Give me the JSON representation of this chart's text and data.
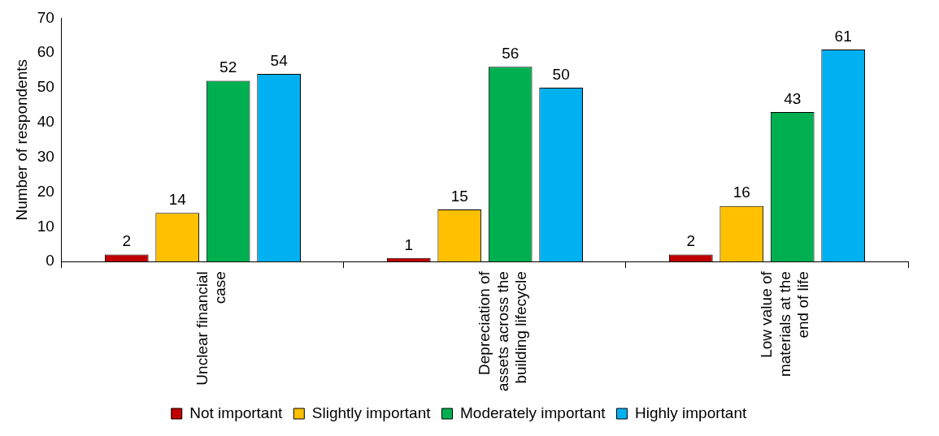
{
  "chart_data": {
    "type": "bar",
    "ylabel": "Number of respondents",
    "categories": [
      "Unclear financial case",
      "Depreciation of assets across the building lifecycle",
      "Low value of materials at the end of life"
    ],
    "series": [
      {
        "name": "Not important",
        "color": "#c00000",
        "values": [
          2,
          1,
          2
        ]
      },
      {
        "name": "Slightly important",
        "color": "#ffc000",
        "values": [
          14,
          15,
          16
        ]
      },
      {
        "name": "Moderately important",
        "color": "#00b050",
        "values": [
          52,
          56,
          43
        ]
      },
      {
        "name": "Highly important",
        "color": "#00b0f0",
        "values": [
          54,
          50,
          61
        ]
      }
    ],
    "ylim": [
      0,
      70
    ],
    "yticks": [
      0,
      10,
      20,
      30,
      40,
      50,
      60,
      70
    ],
    "grid": false,
    "legend": "bottom",
    "data_labels": true
  }
}
